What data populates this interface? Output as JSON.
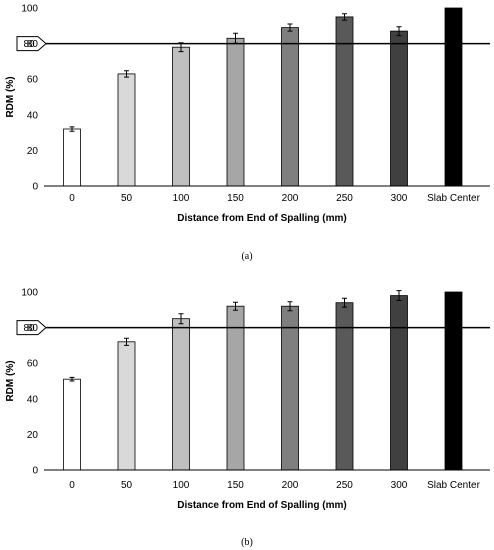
{
  "chart_data": [
    {
      "type": "bar",
      "caption": "(a)",
      "categories": [
        "0",
        "50",
        "100",
        "150",
        "200",
        "250",
        "300",
        "Slab Center"
      ],
      "values": [
        32,
        63,
        78,
        83,
        89,
        95,
        87,
        100
      ],
      "errors": [
        1.2,
        1.8,
        2.5,
        2.8,
        2.0,
        1.8,
        2.5,
        0
      ],
      "bar_colors": [
        "#ffffff",
        "#d9d9d9",
        "#bfbfbf",
        "#a6a6a6",
        "#7f7f7f",
        "#595959",
        "#404040",
        "#000000"
      ],
      "xlabel": "Distance from End of Spalling (mm)",
      "ylabel": "RDM (%)",
      "ylim": [
        0,
        100
      ],
      "yticks": [
        "0",
        "20",
        "40",
        "60",
        "80",
        "100"
      ],
      "reference_line": {
        "value": 80,
        "label": "80"
      }
    },
    {
      "type": "bar",
      "caption": "(b)",
      "categories": [
        "0",
        "50",
        "100",
        "150",
        "200",
        "250",
        "300",
        "Slab Center"
      ],
      "values": [
        51,
        72,
        85,
        92,
        92,
        94,
        98,
        100
      ],
      "errors": [
        1.0,
        2.0,
        2.8,
        2.2,
        2.5,
        2.5,
        2.8,
        0
      ],
      "bar_colors": [
        "#ffffff",
        "#d9d9d9",
        "#bfbfbf",
        "#a6a6a6",
        "#7f7f7f",
        "#595959",
        "#404040",
        "#000000"
      ],
      "xlabel": "Distance from End of Spalling (mm)",
      "ylabel": "RDM (%)",
      "ylim": [
        0,
        100
      ],
      "yticks": [
        "0",
        "20",
        "40",
        "60",
        "80",
        "100"
      ],
      "reference_line": {
        "value": 80,
        "label": "80"
      }
    }
  ]
}
